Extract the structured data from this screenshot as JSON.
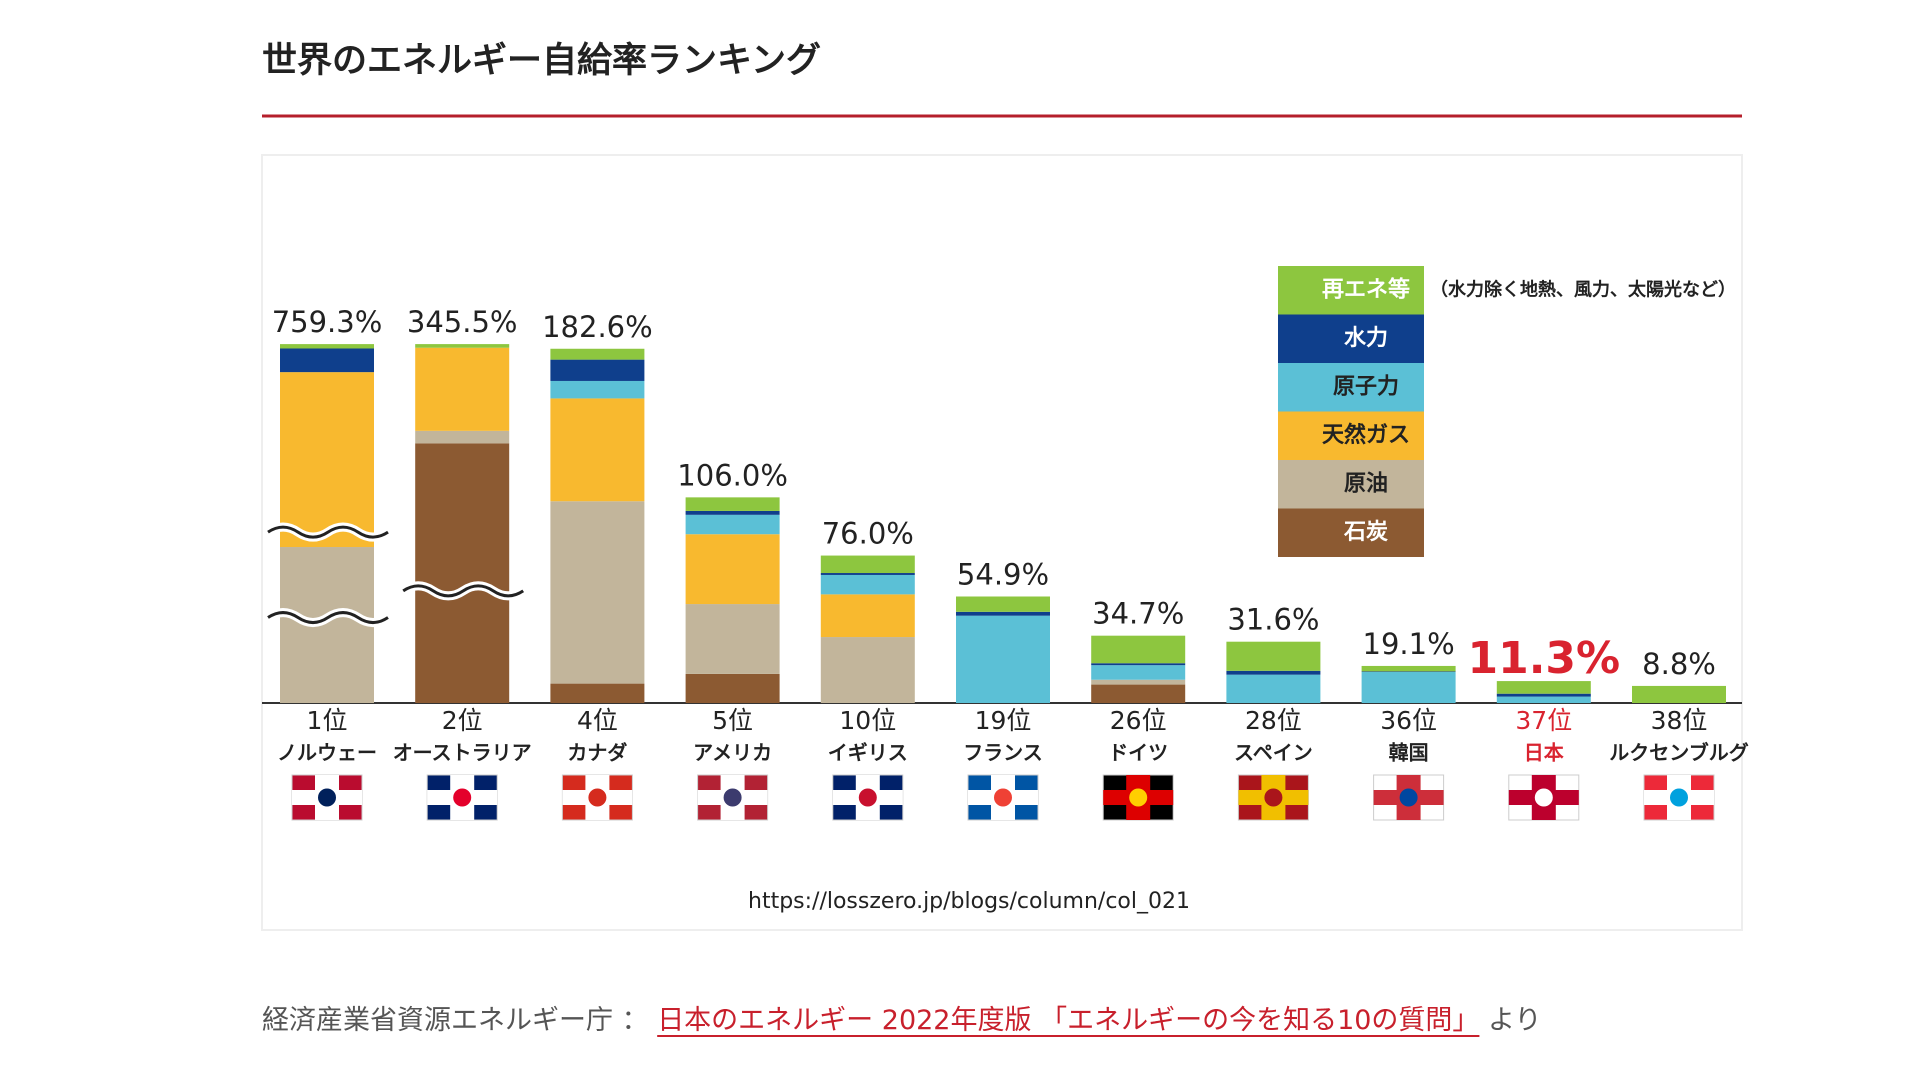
{
  "page": {
    "source_url": "https://losszero.jp/blogs/column/col_021",
    "footer": {
      "prefix": "経済産業省資源エネルギー庁 ：",
      "link": "日本のエネルギー 2022年度版 「エネルギーの今を知る10の質問」",
      "suffix": "より"
    }
  },
  "chart_data": {
    "type": "bar",
    "stacked": true,
    "title": "世界のエネルギー自給率ランキング",
    "categories": [
      "ノルウェー",
      "オーストラリア",
      "カナダ",
      "アメリカ",
      "イギリス",
      "フランス",
      "ドイツ",
      "スペイン",
      "韓国",
      "日本",
      "ルクセンブルグ"
    ],
    "ranks": [
      "1位",
      "2位",
      "4位",
      "5位",
      "10位",
      "19位",
      "26位",
      "28位",
      "36位",
      "37位",
      "38位"
    ],
    "values": [
      759.3,
      345.5,
      182.6,
      106.0,
      76.0,
      54.9,
      34.7,
      31.6,
      19.1,
      11.3,
      8.8
    ],
    "value_labels": [
      "759.3%",
      "345.5%",
      "182.6%",
      "106.0%",
      "76.0%",
      "54.9%",
      "34.7%",
      "31.6%",
      "19.1%",
      "11.3%",
      "8.8%"
    ],
    "series": [
      {
        "name": "再エネ等",
        "color": "#8dc63f",
        "values": [
          9.3,
          3.5,
          5.6,
          7,
          9,
          7.9,
          14.2,
          15,
          2.8,
          6.5,
          8.8
        ]
      },
      {
        "name": "水力",
        "color": "#0f3f8c",
        "values": [
          50,
          0,
          11,
          2,
          1,
          2,
          1,
          2,
          0.3,
          1.5,
          0
        ]
      },
      {
        "name": "原子力",
        "color": "#5bc0d6",
        "values": [
          0,
          0,
          9,
          10,
          10,
          45,
          7.5,
          14.6,
          16,
          3.3,
          0
        ]
      },
      {
        "name": "天然ガス",
        "color": "#f8b92f",
        "values": [
          370,
          80,
          53,
          36,
          22,
          0,
          0,
          0,
          0,
          0,
          0
        ]
      },
      {
        "name": "原油",
        "color": "#c2b59b",
        "values": [
          330,
          12,
          94,
          36,
          34,
          0,
          2.5,
          0,
          0,
          0,
          0
        ]
      },
      {
        "name": "石炭",
        "color": "#8c5a32",
        "values": [
          0,
          250,
          10,
          15,
          0,
          0,
          9.5,
          0,
          0,
          0,
          0
        ]
      }
    ],
    "legend_note": "（水力除く地熱、風力、太陽光など）",
    "highlight": {
      "index": 9,
      "color": "#d9232f"
    }
  }
}
